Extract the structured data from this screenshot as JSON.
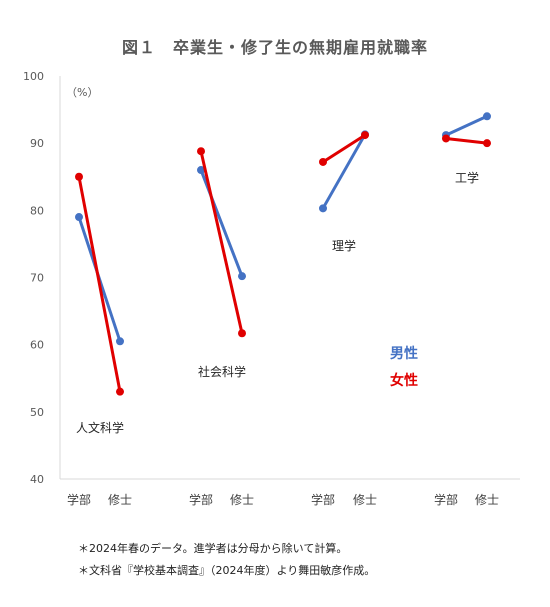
{
  "chart_data": {
    "type": "line",
    "title": "図１　卒業生・修了生の無期雇用就職率",
    "ylabel": "（%）",
    "ylim": [
      40,
      100
    ],
    "yticks": [
      40,
      50,
      60,
      70,
      80,
      90,
      100
    ],
    "grid": false,
    "legend_position": "right-middle",
    "x_levels": [
      "学部",
      "修士"
    ],
    "groups": [
      {
        "label": "人文科学",
        "series": [
          {
            "name": "男性",
            "values": [
              79,
              60.5
            ]
          },
          {
            "name": "女性",
            "values": [
              85,
              53
            ]
          }
        ]
      },
      {
        "label": "社会科学",
        "series": [
          {
            "name": "男性",
            "values": [
              86,
              70.2
            ]
          },
          {
            "name": "女性",
            "values": [
              88.8,
              61.7
            ]
          }
        ]
      },
      {
        "label": "理学",
        "series": [
          {
            "name": "男性",
            "values": [
              80.3,
              91.3
            ]
          },
          {
            "name": "女性",
            "values": [
              87.2,
              91.2
            ]
          }
        ]
      },
      {
        "label": "工学",
        "series": [
          {
            "name": "男性",
            "values": [
              91.2,
              94
            ]
          },
          {
            "name": "女性",
            "values": [
              90.7,
              90
            ]
          }
        ]
      }
    ],
    "colors": {
      "男性": "#4472c4",
      "女性": "#e00000"
    },
    "legend": [
      {
        "name": "男性",
        "color": "#4472c4"
      },
      {
        "name": "女性",
        "color": "#e00000"
      }
    ]
  },
  "notes": [
    "＊2024年春のデータ。進学者は分母から除いて計算。",
    "＊文科省『学校基本調査』（2024年度）より舞田敏彦作成。"
  ]
}
